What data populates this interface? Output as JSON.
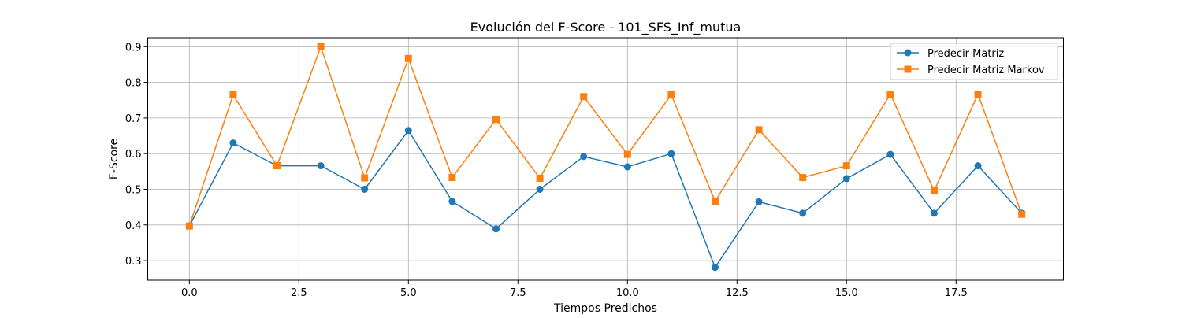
{
  "chart_data": {
    "type": "line",
    "title": "Evolución del F-Score - 101_SFS_Inf_mutua",
    "xlabel": "Tiempos Predichos",
    "ylabel": "F-Score",
    "xlim": [
      -0.95,
      19.95
    ],
    "ylim": [
      0.245,
      0.925
    ],
    "grid": true,
    "legend_position": "top-right",
    "x": [
      0,
      1,
      2,
      3,
      4,
      5,
      6,
      7,
      8,
      9,
      10,
      11,
      12,
      13,
      14,
      15,
      16,
      17,
      18,
      19
    ],
    "xticks": [
      0.0,
      2.5,
      5.0,
      7.5,
      10.0,
      12.5,
      15.0,
      17.5
    ],
    "xtick_labels": [
      "0.0",
      "2.5",
      "5.0",
      "7.5",
      "10.0",
      "12.5",
      "15.0",
      "17.5"
    ],
    "yticks": [
      0.3,
      0.4,
      0.5,
      0.6,
      0.7,
      0.8,
      0.9
    ],
    "ytick_labels": [
      "0.3",
      "0.4",
      "0.5",
      "0.6",
      "0.7",
      "0.8",
      "0.9"
    ],
    "series": [
      {
        "name": "Predecir Matriz",
        "color": "#1f77b4",
        "marker": "circle",
        "values": [
          0.397,
          0.63,
          0.566,
          0.566,
          0.5,
          0.665,
          0.466,
          0.389,
          0.5,
          0.592,
          0.563,
          0.6,
          0.281,
          0.465,
          0.433,
          0.53,
          0.598,
          0.433,
          0.566,
          0.433
        ]
      },
      {
        "name": "Predecir Matriz Markov",
        "color": "#ff7f0e",
        "marker": "square",
        "values": [
          0.397,
          0.765,
          0.566,
          0.9,
          0.532,
          0.867,
          0.533,
          0.696,
          0.531,
          0.76,
          0.598,
          0.765,
          0.466,
          0.667,
          0.533,
          0.566,
          0.767,
          0.496,
          0.767,
          0.43
        ]
      }
    ]
  }
}
